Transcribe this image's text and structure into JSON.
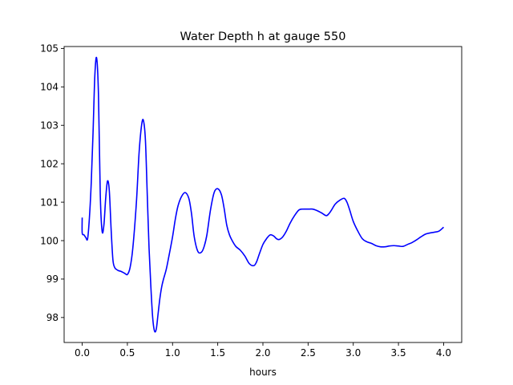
{
  "chart_data": {
    "type": "line",
    "title": "Water Depth h at gauge 550",
    "xlabel": "hours",
    "ylabel": "",
    "xlim": [
      -0.2,
      4.2
    ],
    "ylim": [
      97.35,
      105.05
    ],
    "grid": false,
    "x_ticks": [
      0.0,
      0.5,
      1.0,
      1.5,
      2.0,
      2.5,
      3.0,
      3.5,
      4.0
    ],
    "x_tick_labels": [
      "0.0",
      "0.5",
      "1.0",
      "1.5",
      "2.0",
      "2.5",
      "3.0",
      "3.5",
      "4.0"
    ],
    "y_ticks": [
      98,
      99,
      100,
      101,
      102,
      103,
      104,
      105
    ],
    "y_tick_labels": [
      "98",
      "99",
      "100",
      "101",
      "102",
      "103",
      "104",
      "105"
    ],
    "series": [
      {
        "color": "#0000ff",
        "x": [
          0.0,
          0.0,
          0.02,
          0.04,
          0.06,
          0.08,
          0.1,
          0.12,
          0.14,
          0.16,
          0.18,
          0.2,
          0.22,
          0.24,
          0.26,
          0.28,
          0.3,
          0.32,
          0.34,
          0.36,
          0.38,
          0.4,
          0.43,
          0.47,
          0.5,
          0.53,
          0.56,
          0.6,
          0.63,
          0.66,
          0.68,
          0.7,
          0.72,
          0.74,
          0.76,
          0.78,
          0.8,
          0.82,
          0.84,
          0.86,
          0.88,
          0.9,
          0.93,
          0.96,
          1.0,
          1.03,
          1.06,
          1.1,
          1.14,
          1.18,
          1.21,
          1.24,
          1.28,
          1.32,
          1.35,
          1.38,
          1.42,
          1.46,
          1.5,
          1.54,
          1.57,
          1.6,
          1.63,
          1.66,
          1.7,
          1.75,
          1.8,
          1.85,
          1.9,
          1.93,
          1.96,
          2.0,
          2.04,
          2.08,
          2.12,
          2.15,
          2.18,
          2.22,
          2.26,
          2.3,
          2.35,
          2.4,
          2.45,
          2.5,
          2.55,
          2.6,
          2.65,
          2.7,
          2.73,
          2.76,
          2.8,
          2.85,
          2.9,
          2.93,
          2.96,
          3.0,
          3.05,
          3.1,
          3.15,
          3.2,
          3.25,
          3.3,
          3.35,
          3.4,
          3.45,
          3.5,
          3.55,
          3.6,
          3.65,
          3.7,
          3.75,
          3.8,
          3.85,
          3.9,
          3.95,
          4.0
        ],
        "y": [
          100.6,
          100.2,
          100.15,
          100.08,
          100.05,
          100.6,
          101.5,
          102.8,
          104.3,
          104.75,
          103.8,
          101.2,
          100.25,
          100.4,
          101.1,
          101.55,
          101.3,
          100.3,
          99.5,
          99.3,
          99.25,
          99.22,
          99.2,
          99.15,
          99.12,
          99.3,
          99.8,
          101.0,
          102.3,
          103.05,
          103.1,
          102.6,
          101.2,
          99.8,
          98.8,
          98.0,
          97.65,
          97.7,
          98.1,
          98.5,
          98.8,
          99.0,
          99.25,
          99.6,
          100.1,
          100.55,
          100.9,
          101.15,
          101.25,
          101.1,
          100.7,
          100.1,
          99.72,
          99.7,
          99.85,
          100.15,
          100.8,
          101.25,
          101.35,
          101.2,
          100.85,
          100.4,
          100.15,
          100.0,
          99.85,
          99.75,
          99.6,
          99.4,
          99.35,
          99.45,
          99.65,
          99.9,
          100.05,
          100.15,
          100.12,
          100.05,
          100.03,
          100.1,
          100.25,
          100.45,
          100.65,
          100.8,
          100.82,
          100.82,
          100.82,
          100.78,
          100.72,
          100.65,
          100.7,
          100.8,
          100.95,
          101.05,
          101.1,
          101.0,
          100.8,
          100.5,
          100.25,
          100.05,
          99.97,
          99.93,
          99.87,
          99.84,
          99.84,
          99.86,
          99.87,
          99.86,
          99.85,
          99.9,
          99.95,
          100.02,
          100.1,
          100.17,
          100.2,
          100.22,
          100.25,
          100.35
        ]
      }
    ]
  }
}
